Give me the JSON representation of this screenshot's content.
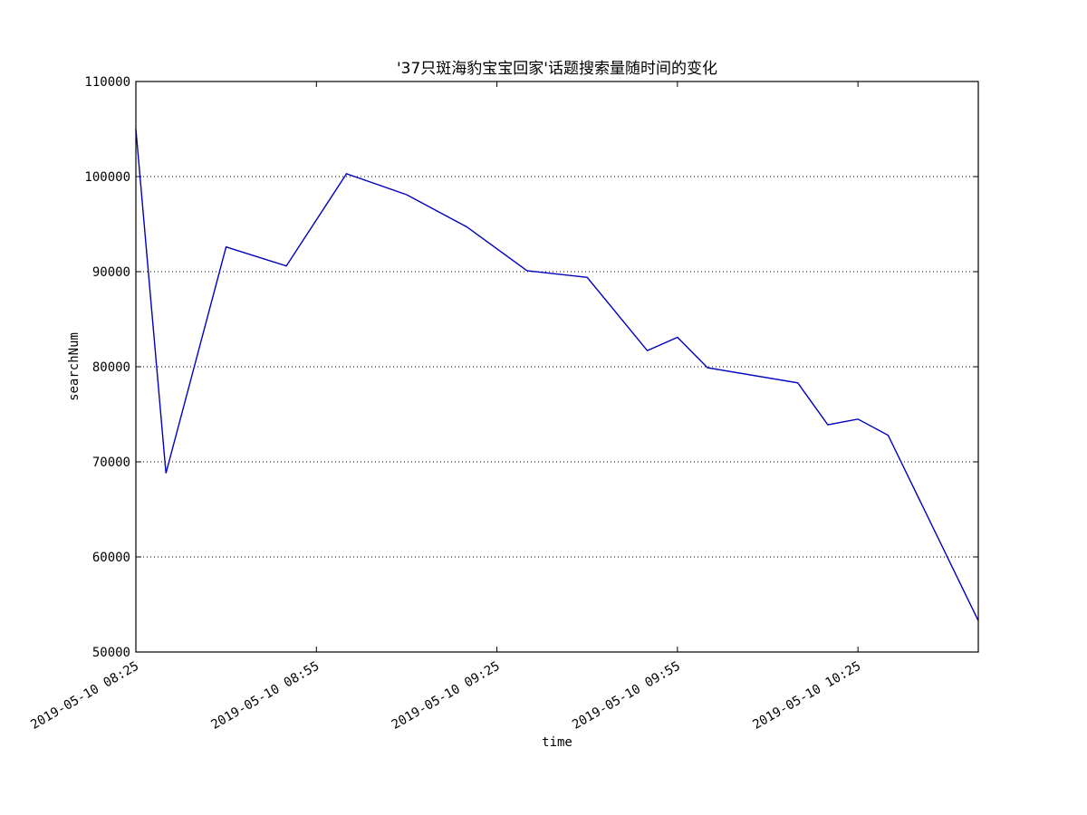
{
  "chart_data": {
    "type": "line",
    "title": "'37只斑海豹宝宝回家'话题搜索量随时间的变化",
    "xlabel": "time",
    "ylabel": "searchNum",
    "ylim": [
      50000,
      110000
    ],
    "yticks": [
      50000,
      60000,
      70000,
      80000,
      90000,
      100000,
      110000
    ],
    "xlim": [
      "2019-05-10 08:25",
      "2019-05-10 10:45"
    ],
    "xticks": [
      "2019-05-10 08:25",
      "2019-05-10 08:55",
      "2019-05-10 09:25",
      "2019-05-10 09:55",
      "2019-05-10 10:25"
    ],
    "grid": "y-dotted",
    "series": [
      {
        "color": "#0000bf",
        "x": [
          "2019-05-10 08:25",
          "2019-05-10 08:30",
          "2019-05-10 08:40",
          "2019-05-10 08:50",
          "2019-05-10 09:00",
          "2019-05-10 09:10",
          "2019-05-10 09:20",
          "2019-05-10 09:30",
          "2019-05-10 09:40",
          "2019-05-10 09:50",
          "2019-05-10 09:55",
          "2019-05-10 10:00",
          "2019-05-10 10:15",
          "2019-05-10 10:20",
          "2019-05-10 10:25",
          "2019-05-10 10:30",
          "2019-05-10 10:45"
        ],
        "y": [
          105000,
          68800,
          92600,
          90600,
          100300,
          98100,
          94700,
          90100,
          89400,
          81700,
          83100,
          79900,
          78300,
          73900,
          74500,
          72800,
          53300
        ]
      }
    ]
  }
}
